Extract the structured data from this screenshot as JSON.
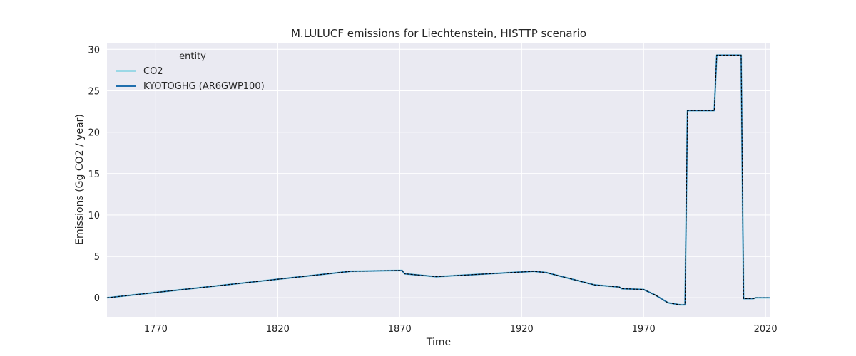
{
  "chart_data": {
    "type": "line",
    "title": "M.LULUCF emissions for Liechtenstein, HISTTP scenario",
    "xlabel": "Time",
    "ylabel": "Emissions (Gg CO2 / year)",
    "xlim": [
      1750,
      2022
    ],
    "ylim": [
      -2.3,
      30.8
    ],
    "x_ticks": [
      1770,
      1820,
      1870,
      1920,
      1970,
      2020
    ],
    "y_ticks": [
      0,
      5,
      10,
      15,
      20,
      25,
      30
    ],
    "grid": true,
    "legend": {
      "title": "entity",
      "placement": "top-left"
    },
    "series": [
      {
        "name": "CO2",
        "color": "#9bd8e6",
        "points": [
          [
            1750,
            0.0
          ],
          [
            1850,
            3.2
          ],
          [
            1871,
            3.3
          ],
          [
            1872,
            2.9
          ],
          [
            1885,
            2.55
          ],
          [
            1925,
            3.2
          ],
          [
            1930,
            3.05
          ],
          [
            1940,
            2.3
          ],
          [
            1950,
            1.55
          ],
          [
            1960,
            1.3
          ],
          [
            1961,
            1.1
          ],
          [
            1970,
            1.0
          ],
          [
            1975,
            0.3
          ],
          [
            1980,
            -0.6
          ],
          [
            1985,
            -0.85
          ],
          [
            1987,
            -0.85
          ],
          [
            1988,
            22.6
          ],
          [
            1999,
            22.6
          ],
          [
            2000,
            29.3
          ],
          [
            2010,
            29.3
          ],
          [
            2011,
            -0.1
          ],
          [
            2015,
            -0.1
          ],
          [
            2016,
            0.0
          ],
          [
            2022,
            0.0
          ]
        ]
      },
      {
        "name": "KYOTOGHG (AR6GWP100)",
        "color": "#1f6ead",
        "points": [
          [
            1750,
            0.0
          ],
          [
            1850,
            3.2
          ],
          [
            1871,
            3.3
          ],
          [
            1872,
            2.9
          ],
          [
            1885,
            2.55
          ],
          [
            1925,
            3.2
          ],
          [
            1930,
            3.05
          ],
          [
            1940,
            2.3
          ],
          [
            1950,
            1.55
          ],
          [
            1960,
            1.3
          ],
          [
            1961,
            1.1
          ],
          [
            1970,
            1.0
          ],
          [
            1975,
            0.3
          ],
          [
            1980,
            -0.6
          ],
          [
            1985,
            -0.85
          ],
          [
            1987,
            -0.85
          ],
          [
            1988,
            22.6
          ],
          [
            1999,
            22.6
          ],
          [
            2000,
            29.3
          ],
          [
            2010,
            29.3
          ],
          [
            2011,
            -0.1
          ],
          [
            2015,
            -0.1
          ],
          [
            2016,
            0.0
          ],
          [
            2022,
            0.0
          ]
        ]
      }
    ]
  }
}
